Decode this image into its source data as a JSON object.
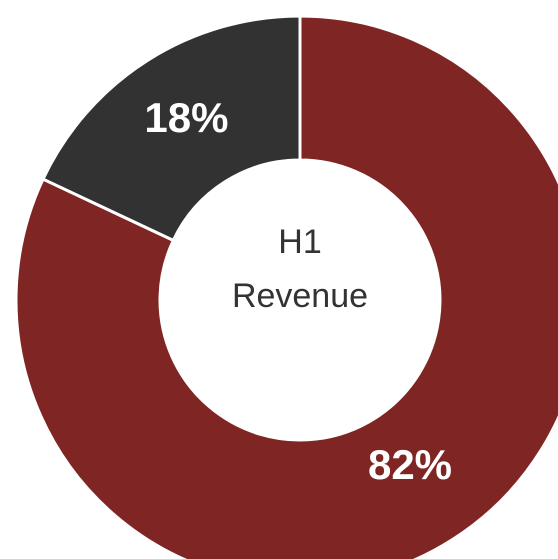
{
  "chart_data": {
    "type": "donut",
    "title": [
      "H1",
      "Revenue"
    ],
    "values": [
      82,
      18
    ],
    "value_labels": [
      "82%",
      "18%"
    ],
    "colors": [
      "#7f2624",
      "#323232"
    ]
  }
}
